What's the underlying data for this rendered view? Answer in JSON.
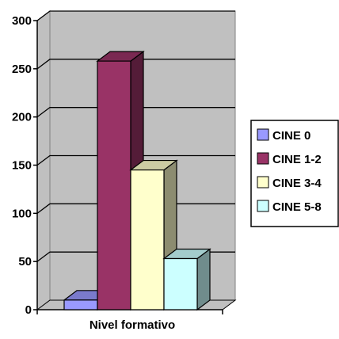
{
  "chart_data": {
    "type": "bar",
    "style": "3d-clustered-column",
    "title": "",
    "xlabel": "Nivel formativo",
    "ylabel": "",
    "ylim": [
      0,
      300
    ],
    "yticks": [
      0,
      50,
      100,
      150,
      200,
      250,
      300
    ],
    "grid": true,
    "legend_position": "right",
    "categories": [
      "Nivel formativo"
    ],
    "series": [
      {
        "name": "CINE 0",
        "values": [
          10
        ],
        "color": "#9999ff"
      },
      {
        "name": "CINE 1-2",
        "values": [
          258
        ],
        "color": "#993366"
      },
      {
        "name": "CINE 3-4",
        "values": [
          145
        ],
        "color": "#ffffcc"
      },
      {
        "name": "CINE 5-8",
        "values": [
          53
        ],
        "color": "#ccffff"
      }
    ],
    "colors": {
      "wall": "#c0c0c0",
      "floor": "#c0c0c0",
      "grid": "#000000"
    }
  }
}
